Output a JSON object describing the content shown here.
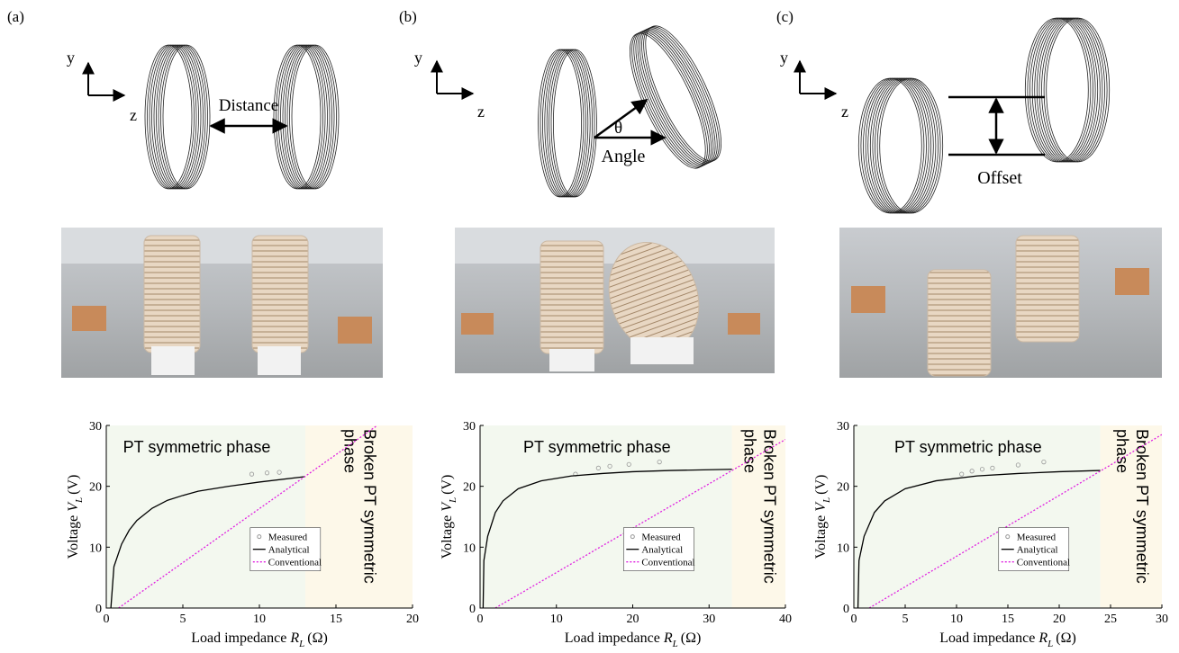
{
  "panels": [
    {
      "label": "(a)",
      "axis_y": "y",
      "axis_z": "z",
      "annotations": [
        "Distance"
      ]
    },
    {
      "label": "(b)",
      "axis_y": "y",
      "axis_z": "z",
      "annotations": [
        "θ",
        "Angle"
      ]
    },
    {
      "label": "(c)",
      "axis_y": "y",
      "axis_z": "z",
      "annotations": [
        "Offset"
      ]
    }
  ],
  "chart_data": [
    {
      "type": "line",
      "x_label": "Load impedance",
      "x_label_var": "R",
      "x_label_sub": "L",
      "x_label_unit": "(Ω)",
      "y_label": "Voltage",
      "y_label_var": "V",
      "y_label_sub": "L",
      "y_label_unit": "(V)",
      "xlim": [
        0,
        20
      ],
      "xticks": [
        0,
        5,
        10,
        15,
        20
      ],
      "ylim": [
        0,
        30
      ],
      "yticks": [
        0,
        10,
        20,
        30
      ],
      "legend": "center",
      "regions": [
        {
          "label": "PT symmetric phase",
          "xrange": [
            0,
            13
          ],
          "color": "#f3f8ef"
        },
        {
          "label_lines": [
            "Broken PT symmetric",
            "phase"
          ],
          "xrange": [
            13,
            20
          ],
          "color": "#fdf8e9"
        }
      ],
      "series": [
        {
          "name": "Measured",
          "color": "#999999",
          "marker": "circle",
          "x": [
            9.5,
            10.5,
            11.3
          ],
          "values": [
            22,
            22.2,
            22.3
          ]
        },
        {
          "name": "Analytical",
          "color": "#000000",
          "x": [
            0.3,
            0.5,
            1,
            1.5,
            2,
            3,
            4,
            5,
            6,
            8,
            10,
            13
          ],
          "values": [
            0,
            6.8,
            10.5,
            12.8,
            14.4,
            16.4,
            17.7,
            18.5,
            19.2,
            20.0,
            20.7,
            21.6
          ]
        },
        {
          "name": "Conventional",
          "color": "#e020e0",
          "dash": true,
          "x": [
            0.8,
            17.7
          ],
          "values": [
            0,
            30
          ]
        }
      ]
    },
    {
      "type": "line",
      "x_label": "Load impedance",
      "x_label_var": "R",
      "x_label_sub": "L",
      "x_label_unit": "(Ω)",
      "y_label": "Voltage",
      "y_label_var": "V",
      "y_label_sub": "L",
      "y_label_unit": "(V)",
      "xlim": [
        0,
        40
      ],
      "xticks": [
        0,
        10,
        20,
        30,
        40
      ],
      "ylim": [
        0,
        30
      ],
      "yticks": [
        0,
        10,
        20,
        30
      ],
      "legend": "center",
      "regions": [
        {
          "label": "PT symmetric phase",
          "xrange": [
            0,
            33
          ],
          "color": "#f3f8ef"
        },
        {
          "label_lines": [
            "Broken PT symmetric",
            "phase"
          ],
          "xrange": [
            33,
            40
          ],
          "color": "#fdf8e9"
        }
      ],
      "series": [
        {
          "name": "Measured",
          "color": "#999999",
          "marker": "circle",
          "x": [
            12.5,
            15.5,
            17,
            19.5,
            23.5
          ],
          "values": [
            22,
            23,
            23.3,
            23.6,
            24
          ]
        },
        {
          "name": "Analytical",
          "color": "#000000",
          "x": [
            0.4,
            0.5,
            1,
            2,
            3,
            5,
            8,
            12,
            16,
            20,
            25,
            33
          ],
          "values": [
            0,
            7.8,
            11.8,
            15.7,
            17.6,
            19.6,
            20.9,
            21.7,
            22.1,
            22.4,
            22.6,
            22.8
          ]
        },
        {
          "name": "Conventional",
          "color": "#e020e0",
          "dash": true,
          "x": [
            2,
            40
          ],
          "values": [
            0,
            27.7
          ]
        }
      ]
    },
    {
      "type": "line",
      "x_label": "Load impedance",
      "x_label_var": "R",
      "x_label_sub": "L",
      "x_label_unit": "(Ω)",
      "y_label": "Voltage",
      "y_label_var": "V",
      "y_label_sub": "L",
      "y_label_unit": "(V)",
      "xlim": [
        0,
        30
      ],
      "xticks": [
        0,
        5,
        10,
        15,
        20,
        25,
        30
      ],
      "ylim": [
        0,
        30
      ],
      "yticks": [
        0,
        10,
        20,
        30
      ],
      "legend": "center",
      "regions": [
        {
          "label": "PT symmetric phase",
          "xrange": [
            0,
            24
          ],
          "color": "#f3f8ef"
        },
        {
          "label_lines": [
            "Broken PT symmetric",
            "phase"
          ],
          "xrange": [
            24,
            30
          ],
          "color": "#fdf8e9"
        }
      ],
      "series": [
        {
          "name": "Measured",
          "color": "#999999",
          "marker": "circle",
          "x": [
            10.5,
            11.5,
            12.5,
            13.5,
            16,
            18.5
          ],
          "values": [
            22,
            22.5,
            22.8,
            23,
            23.5,
            24
          ]
        },
        {
          "name": "Analytical",
          "color": "#000000",
          "x": [
            0.4,
            0.5,
            1,
            2,
            3,
            5,
            8,
            12,
            16,
            20,
            24
          ],
          "values": [
            0,
            7.8,
            11.8,
            15.7,
            17.6,
            19.6,
            20.9,
            21.7,
            22.1,
            22.4,
            22.6
          ]
        },
        {
          "name": "Conventional",
          "color": "#e020e0",
          "dash": true,
          "x": [
            1.5,
            30
          ],
          "values": [
            0,
            28.5
          ]
        }
      ]
    }
  ]
}
